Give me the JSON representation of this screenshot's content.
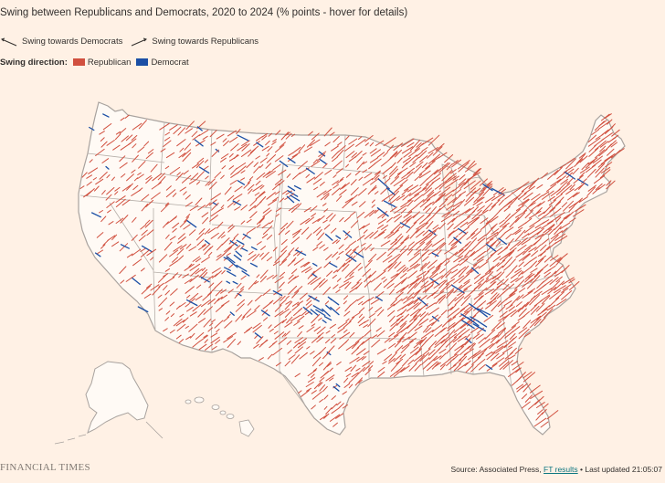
{
  "title": "Swing between Republicans and Democrats, 2020 to 2024 (% points - hover for details)",
  "legend": {
    "dem_label": "Swing towards Democrats",
    "rep_label": "Swing towards Republicans"
  },
  "swing_direction": {
    "label": "Swing direction:",
    "republican": "Republican",
    "democrat": "Democrat"
  },
  "colors": {
    "background": "#fff1e5",
    "republican": "#d1503f",
    "democrat": "#1b4fa5",
    "land": "#fffaf5",
    "border": "#a8a29e"
  },
  "footer": {
    "brand": "FINANCIAL TIMES",
    "source_prefix": "Source: Associated Press,",
    "source_link": "FT results",
    "updated": "• Last updated 21:05:07"
  }
}
